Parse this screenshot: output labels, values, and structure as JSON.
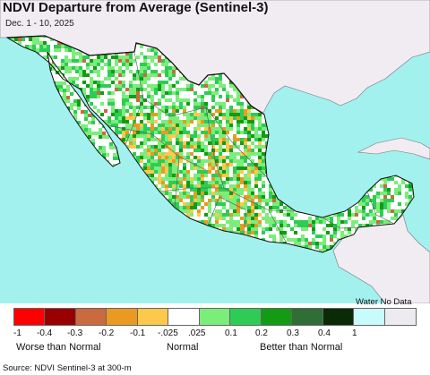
{
  "header": {
    "title": "NDVI Departure from Average (Sentinel-3)",
    "date_range": "Dec. 1 - 10, 2025"
  },
  "map": {
    "colors": {
      "ocean": "#a2f1ee",
      "land_other": "#f0ecf2",
      "border": "#111111",
      "state_border": "#555555"
    }
  },
  "legend": {
    "water_no_data_label": "Water No Data",
    "swatches": [
      {
        "color": "#ff0000"
      },
      {
        "color": "#990000"
      },
      {
        "color": "#c96a3f"
      },
      {
        "color": "#ea9a21"
      },
      {
        "color": "#fdc94d"
      },
      {
        "color": "#ffffff"
      },
      {
        "color": "#7bed7a"
      },
      {
        "color": "#2ecc55"
      },
      {
        "color": "#139c13"
      },
      {
        "color": "#2f6e34"
      },
      {
        "color": "#0a2b06"
      },
      {
        "color": "#c8fbfb"
      },
      {
        "color": "#edeaf0"
      }
    ],
    "ticks": [
      "-1",
      "-0.4",
      "-0.3",
      "-0.2",
      "-0.1",
      "-.025",
      ".025",
      "0.1",
      "0.2",
      "0.3",
      "0.4",
      "1"
    ],
    "categories": {
      "worse": "Worse than Normal",
      "normal": "Normal",
      "better": "Better than Normal"
    }
  },
  "footer": {
    "source": "Source: NDVI Sentinel-3 at 300-m"
  }
}
